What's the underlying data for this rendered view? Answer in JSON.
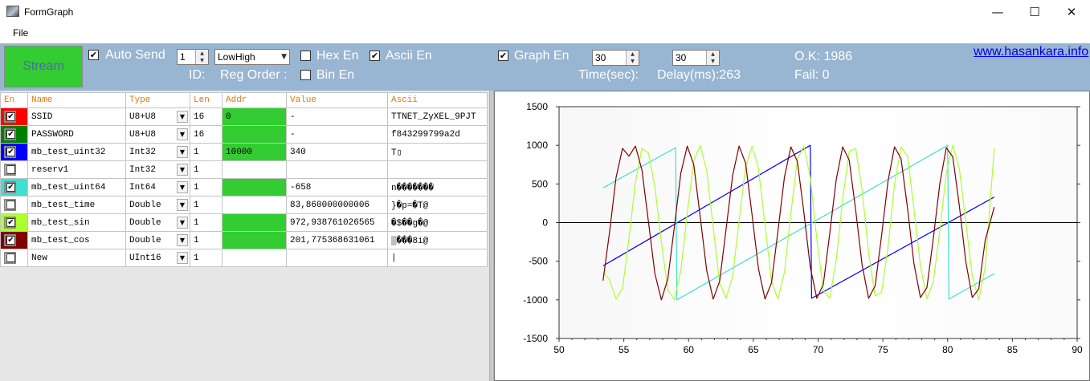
{
  "window": {
    "title": "FormGraph",
    "minimize": "—",
    "maximize": "☐",
    "close": "✕"
  },
  "menu": {
    "file": "File"
  },
  "toolbar": {
    "stream_label": "Stream",
    "auto_send_label": "Auto Send",
    "auto_send_checked": true,
    "id_value": "1",
    "id_label": "ID:",
    "reg_order_value": "LowHigh",
    "reg_order_label": "Reg Order :",
    "hex_en_label": "Hex En",
    "hex_en_checked": false,
    "bin_en_label": "Bin En",
    "bin_en_checked": false,
    "ascii_en_label": "Ascii En",
    "ascii_en_checked": true,
    "graph_en_label": "Graph En",
    "graph_en_checked": true,
    "time_value": "30",
    "time_label": "Time(sec):",
    "delay_value": "30",
    "delay_label": "Delay(ms):263",
    "ok_label": "O.K: 1986",
    "fail_label": "Fail: 0",
    "website": "www.hasankara.info"
  },
  "table": {
    "headers": {
      "en": "En",
      "name": "Name",
      "type": "Type",
      "len": "Len",
      "addr": "Addr",
      "value": "Value",
      "ascii": "Ascii"
    },
    "rows": [
      {
        "name": "SSID",
        "type": "U8+U8",
        "len": "16",
        "addr": "0",
        "value": "-",
        "ascii": "TTNET_ZyXEL_9PJT",
        "checked": true,
        "color": "#ff0000",
        "addr_green": true
      },
      {
        "name": "PASSWORD",
        "type": "U8+U8",
        "len": "16",
        "addr": "",
        "value": "-",
        "ascii": "f843299799a2d",
        "checked": true,
        "color": "#008000",
        "addr_green": true
      },
      {
        "name": "mb_test_uint32",
        "type": "Int32",
        "len": "1",
        "addr": "10000",
        "value": "340",
        "ascii": "T▯",
        "checked": true,
        "color": "#0000ff",
        "addr_green": true
      },
      {
        "name": "reserv1",
        "type": "Int32",
        "len": "1",
        "addr": "",
        "value": "",
        "ascii": "",
        "checked": false,
        "color": "",
        "addr_green": false
      },
      {
        "name": "mb_test_uint64",
        "type": "Int64",
        "len": "1",
        "addr": "",
        "value": "-658",
        "ascii": "n�������",
        "checked": true,
        "color": "#40e0d0",
        "addr_green": true
      },
      {
        "name": "mb_test_time",
        "type": "Double",
        "len": "1",
        "addr": "",
        "value": "83,860000000006",
        "ascii": "}�p=�T@",
        "checked": false,
        "color": "",
        "addr_green": false
      },
      {
        "name": "mb_test_sin",
        "type": "Double",
        "len": "1",
        "addr": "",
        "value": "972,938761026565",
        "ascii": "�$��g�@",
        "checked": true,
        "color": "#adff2f",
        "addr_green": true
      },
      {
        "name": "mb_test_cos",
        "type": "Double",
        "len": "1",
        "addr": "",
        "value": "201,775368631061",
        "ascii": "▒���8i@",
        "checked": true,
        "color": "#800000",
        "addr_green": true
      },
      {
        "name": "New",
        "type": "UInt16",
        "len": "1",
        "addr": "",
        "value": "",
        "ascii": "|",
        "checked": false,
        "color": "",
        "addr_green": false
      }
    ]
  },
  "chart_data": {
    "type": "line",
    "xlim": [
      50,
      90
    ],
    "ylim": [
      -1500,
      1500
    ],
    "x_ticks": [
      "50",
      "55",
      "60",
      "65",
      "70",
      "75",
      "80",
      "85",
      "90"
    ],
    "y_ticks": [
      "1500",
      "1000",
      "500",
      "0",
      "-500",
      "-1000",
      "-1500"
    ],
    "series": [
      {
        "color": "#0000ff",
        "points": [
          [
            53.4,
            -560
          ],
          [
            69.4,
            1000
          ],
          [
            69.5,
            -980
          ],
          [
            83.6,
            330
          ]
        ]
      },
      {
        "color": "#40e0d0",
        "points": [
          [
            53.4,
            450
          ],
          [
            59.0,
            970
          ],
          [
            59.1,
            -1000
          ],
          [
            80.0,
            1000
          ],
          [
            80.1,
            -990
          ],
          [
            83.6,
            -660
          ]
        ]
      },
      {
        "color": "#adff2f",
        "points": [
          [
            53.4,
            -640
          ],
          [
            53.9,
            -740
          ],
          [
            54.4,
            -990
          ],
          [
            54.9,
            -850
          ],
          [
            55.4,
            -200
          ],
          [
            55.9,
            530
          ],
          [
            56.4,
            960
          ],
          [
            56.9,
            900
          ],
          [
            57.4,
            460
          ],
          [
            57.9,
            -250
          ],
          [
            58.4,
            -870
          ],
          [
            58.9,
            -1000
          ],
          [
            59.4,
            -620
          ],
          [
            59.9,
            120
          ],
          [
            60.4,
            800
          ],
          [
            60.9,
            1000
          ],
          [
            61.4,
            670
          ],
          [
            61.9,
            -60
          ],
          [
            62.4,
            -780
          ],
          [
            62.9,
            -980
          ],
          [
            63.4,
            -690
          ],
          [
            63.9,
            20
          ],
          [
            64.4,
            720
          ],
          [
            64.9,
            990
          ],
          [
            65.4,
            700
          ],
          [
            65.9,
            -30
          ],
          [
            66.4,
            -760
          ],
          [
            66.9,
            -990
          ],
          [
            67.4,
            -640
          ],
          [
            67.9,
            120
          ],
          [
            68.4,
            820
          ],
          [
            68.9,
            990
          ],
          [
            69.4,
            580
          ],
          [
            69.9,
            -210
          ],
          [
            70.4,
            -880
          ],
          [
            70.9,
            -980
          ],
          [
            71.4,
            -480
          ],
          [
            71.9,
            300
          ],
          [
            72.4,
            920
          ],
          [
            72.9,
            960
          ],
          [
            73.4,
            420
          ],
          [
            73.9,
            -390
          ],
          [
            74.4,
            -950
          ],
          [
            74.9,
            -900
          ],
          [
            75.4,
            -310
          ],
          [
            75.9,
            490
          ],
          [
            76.4,
            980
          ],
          [
            76.9,
            860
          ],
          [
            77.4,
            180
          ],
          [
            77.9,
            -560
          ],
          [
            78.4,
            -990
          ],
          [
            78.9,
            -760
          ],
          [
            79.4,
            -100
          ],
          [
            79.9,
            640
          ],
          [
            80.4,
            1000
          ],
          [
            80.9,
            700
          ],
          [
            81.4,
            20
          ],
          [
            81.9,
            -690
          ],
          [
            82.4,
            -1000
          ],
          [
            82.9,
            -580
          ],
          [
            83.6,
            960
          ]
        ]
      },
      {
        "color": "#800000",
        "points": [
          [
            53.4,
            -750
          ],
          [
            53.9,
            -120
          ],
          [
            54.4,
            580
          ],
          [
            54.9,
            960
          ],
          [
            55.4,
            860
          ],
          [
            55.9,
            990
          ],
          [
            56.4,
            680
          ],
          [
            56.9,
            10
          ],
          [
            57.4,
            -660
          ],
          [
            57.9,
            -1000
          ],
          [
            58.4,
            -730
          ],
          [
            58.9,
            -60
          ],
          [
            59.4,
            640
          ],
          [
            59.9,
            990
          ],
          [
            60.4,
            750
          ],
          [
            60.9,
            70
          ],
          [
            61.4,
            -620
          ],
          [
            61.9,
            -990
          ],
          [
            62.4,
            -760
          ],
          [
            62.9,
            -80
          ],
          [
            63.4,
            610
          ],
          [
            63.9,
            990
          ],
          [
            64.4,
            770
          ],
          [
            64.9,
            100
          ],
          [
            65.4,
            -600
          ],
          [
            65.9,
            -990
          ],
          [
            66.4,
            -780
          ],
          [
            66.9,
            -110
          ],
          [
            67.4,
            590
          ],
          [
            67.9,
            980
          ],
          [
            68.4,
            790
          ],
          [
            68.9,
            130
          ],
          [
            69.4,
            -580
          ],
          [
            69.9,
            -980
          ],
          [
            70.4,
            -800
          ],
          [
            70.9,
            -140
          ],
          [
            71.4,
            560
          ],
          [
            71.9,
            980
          ],
          [
            72.4,
            810
          ],
          [
            72.9,
            160
          ],
          [
            73.4,
            -550
          ],
          [
            73.9,
            -980
          ],
          [
            74.4,
            -820
          ],
          [
            74.9,
            -170
          ],
          [
            75.4,
            540
          ],
          [
            75.9,
            980
          ],
          [
            76.4,
            830
          ],
          [
            76.9,
            190
          ],
          [
            77.4,
            -530
          ],
          [
            77.9,
            -970
          ],
          [
            78.4,
            -840
          ],
          [
            78.9,
            -200
          ],
          [
            79.4,
            510
          ],
          [
            79.9,
            970
          ],
          [
            80.4,
            850
          ],
          [
            80.9,
            220
          ],
          [
            81.4,
            -500
          ],
          [
            81.9,
            -970
          ],
          [
            82.4,
            -860
          ],
          [
            82.9,
            -230
          ],
          [
            83.6,
            200
          ]
        ]
      }
    ]
  }
}
